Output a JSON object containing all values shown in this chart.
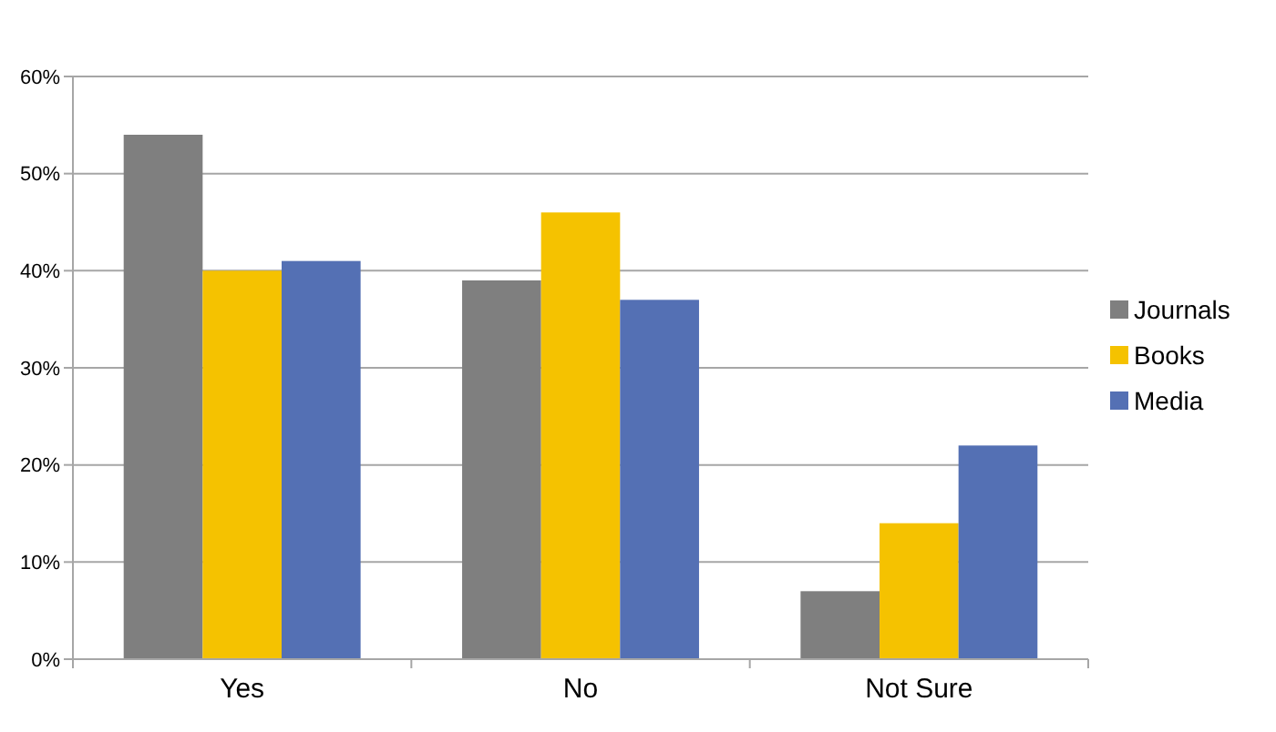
{
  "chart_data": {
    "type": "bar",
    "categories": [
      "Yes",
      "No",
      "Not Sure"
    ],
    "series": [
      {
        "name": "Journals",
        "color": "#7f7f7f",
        "values": [
          54,
          39,
          7
        ]
      },
      {
        "name": "Books",
        "color": "#f5c200",
        "values": [
          40,
          46,
          14
        ]
      },
      {
        "name": "Media",
        "color": "#5470b4",
        "values": [
          41,
          37,
          22
        ]
      }
    ],
    "ylim": [
      0,
      60
    ],
    "yticks": [
      {
        "value": 0,
        "label": "0%"
      },
      {
        "value": 10,
        "label": "10%"
      },
      {
        "value": 20,
        "label": "20%"
      },
      {
        "value": 30,
        "label": "30%"
      },
      {
        "value": 40,
        "label": "40%"
      },
      {
        "value": 50,
        "label": "50%"
      },
      {
        "value": 60,
        "label": "60%"
      }
    ],
    "grid": "y",
    "legend": "right"
  }
}
